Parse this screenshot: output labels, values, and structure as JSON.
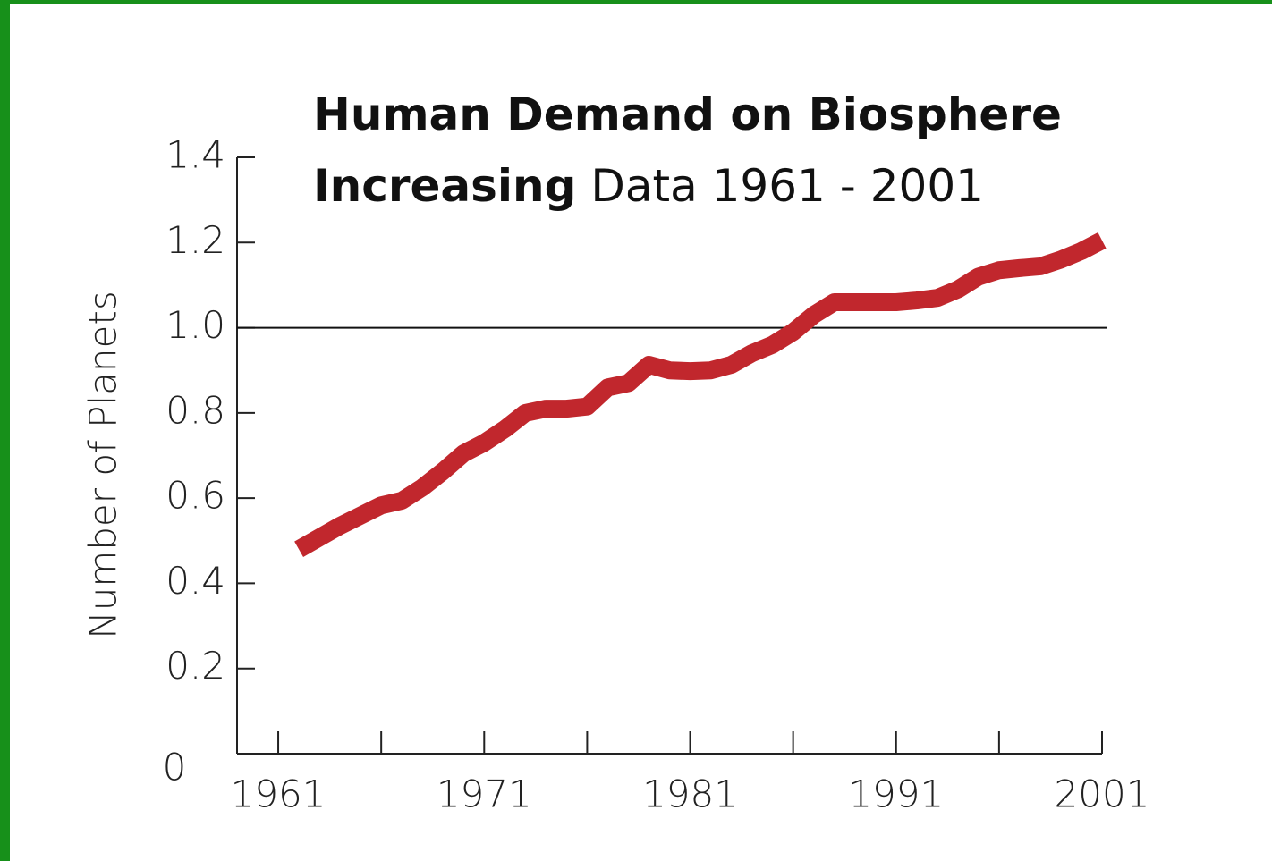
{
  "chart_data": {
    "type": "line",
    "title": "Human Demand on Biosphere Increasing",
    "subtitle": "Data 1961 - 2001",
    "y_label": "Number of Planets",
    "x": [
      1962,
      1964,
      1966,
      1967,
      1968,
      1969,
      1970,
      1971,
      1972,
      1973,
      1974,
      1975,
      1976,
      1977,
      1978,
      1979,
      1980,
      1981,
      1982,
      1983,
      1984,
      1985,
      1986,
      1987,
      1988,
      1989,
      1990,
      1991,
      1992,
      1993,
      1994,
      1995,
      1996,
      1997,
      1998,
      1999,
      2000,
      2001
    ],
    "series": [
      {
        "color": "#c1272d",
        "values": [
          0.48,
          0.535,
          0.583,
          0.594,
          0.625,
          0.663,
          0.705,
          0.73,
          0.762,
          0.8,
          0.81,
          0.81,
          0.815,
          0.86,
          0.87,
          0.913,
          0.9,
          0.898,
          0.9,
          0.913,
          0.94,
          0.96,
          0.99,
          1.03,
          1.06,
          1.06,
          1.06,
          1.06,
          1.064,
          1.07,
          1.09,
          1.12,
          1.135,
          1.14,
          1.144,
          1.16,
          1.18,
          1.205
        ]
      }
    ],
    "xlim": [
      1959,
      2001
    ],
    "xticks": [
      1961,
      1971,
      1981,
      1991,
      2001
    ],
    "xminor_ticks": [
      1966,
      1976,
      1986,
      1996
    ],
    "ylim": [
      0,
      1.4
    ],
    "yticks": [
      0,
      0.2,
      0.4,
      0.6,
      0.8,
      {
        "value": 1,
        "label": "1.0"
      },
      1.2,
      1.4
    ],
    "reference_line": 1
  }
}
